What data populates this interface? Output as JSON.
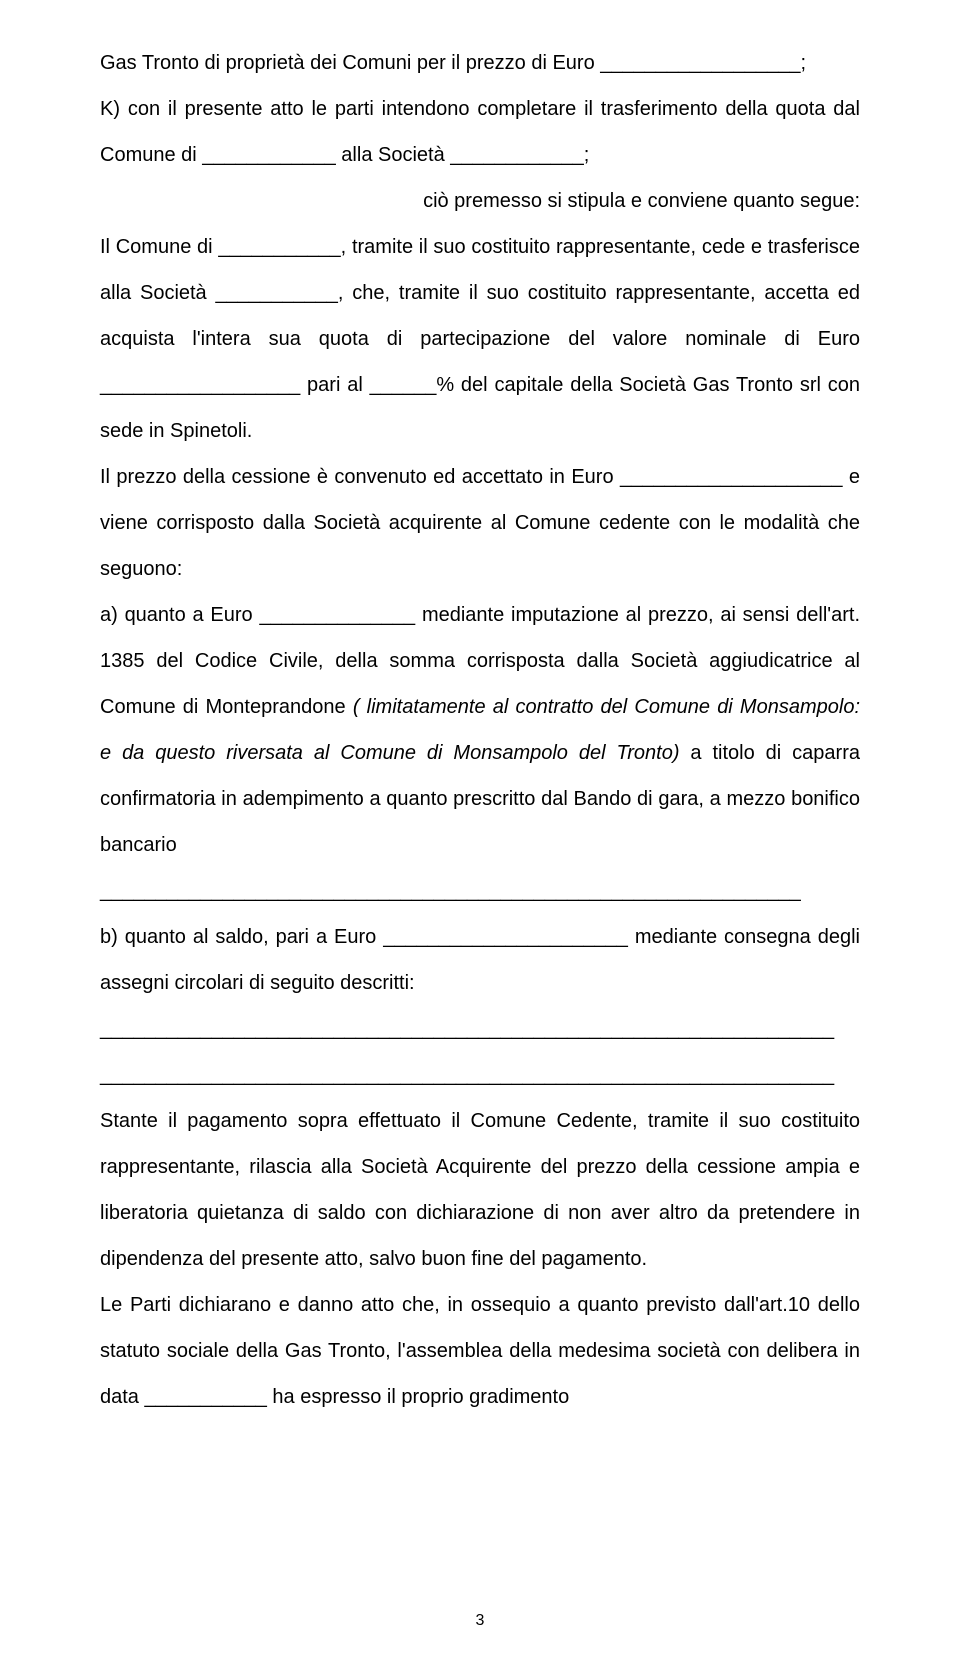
{
  "p1": "Gas Tronto di proprietà dei Comuni per il prezzo di Euro __________________;",
  "p2": "K) con il presente atto le parti intendono completare il trasferimento della quota dal Comune di ____________ alla Società ____________;",
  "p3": "ciò premesso si stipula e conviene quanto segue:",
  "p4a": "Il Comune di ___________, tramite il suo costituito rappresentante, cede e trasferisce alla Società ___________, che, tramite il suo costituito rappresentante, accetta ed acquista l'intera sua quota di partecipazione del valore nominale di Euro __________________ pari al ______% del capitale della Società Gas Tronto srl con sede in Spinetoli.",
  "p5": "Il prezzo della cessione è convenuto ed accettato in Euro ____________________ e viene corrisposto dalla Società acquirente al Comune cedente con le modalità che seguono:",
  "p6": "a) quanto a Euro ______________ mediante imputazione al prezzo, ai sensi dell'art. 1385 del Codice Civile, della somma corrisposta dalla Società aggiudicatrice al Comune di Monteprandone ",
  "p6i": "( limitatamente al contratto del Comune di Monsampolo: e da questo riversata al Comune di Monsampolo del Tronto)",
  "p6b": " a titolo di caparra confirmatoria in adempimento a quanto prescritto dal Bando di gara, a mezzo bonifico bancario _______________________________________________________________",
  "p7": "b) quanto al saldo, pari a Euro ______________________ mediante consegna degli assegni circolari di seguito descritti:",
  "p8": "__________________________________________________________________",
  "p9": "__________________________________________________________________",
  "p10": "Stante il pagamento sopra effettuato il Comune Cedente, tramite il suo costituito rappresentante, rilascia alla Società Acquirente del prezzo della cessione ampia e liberatoria quietanza di saldo con dichiarazione di non aver altro da pretendere in dipendenza del presente atto, salvo buon fine del pagamento.",
  "p11": "Le Parti dichiarano e danno atto che, in ossequio a quanto previsto dall'art.10 dello statuto sociale della Gas Tronto, l'assemblea della medesima società con delibera in data ___________ ha espresso il proprio gradimento",
  "pageNumber": "3"
}
